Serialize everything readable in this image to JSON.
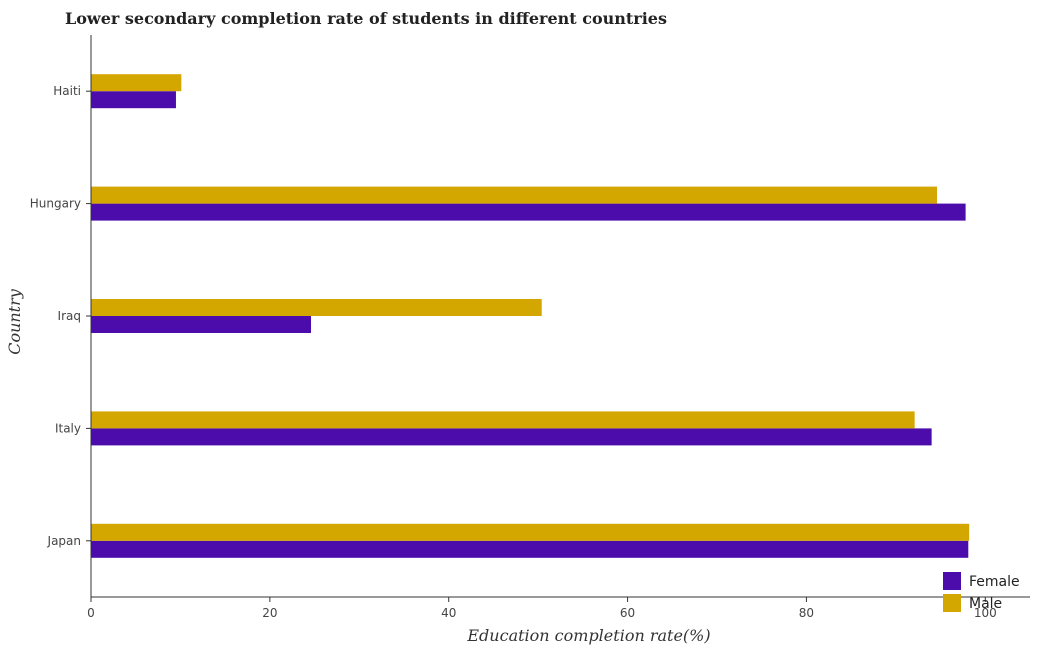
{
  "chart_data": {
    "type": "bar",
    "orientation": "horizontal",
    "title": "Lower secondary completion rate of students in different countries",
    "xlabel": "Education completion rate(%)",
    "ylabel": "Country",
    "xlim": [
      0,
      105
    ],
    "xticks": [
      "0",
      "20",
      "40",
      "60",
      "80",
      "100"
    ],
    "categories": [
      "Haiti",
      "Hungary",
      "Iraq",
      "Italy",
      "Japan"
    ],
    "series": [
      {
        "name": "Female",
        "color": "#4b0cab",
        "values": [
          9.5,
          97.8,
          24.6,
          94.0,
          98.1
        ]
      },
      {
        "name": "Male",
        "color": "#d4a600",
        "values": [
          10.1,
          94.6,
          50.4,
          92.1,
          98.2
        ]
      }
    ],
    "grid": false,
    "legend": "bottom-right"
  }
}
